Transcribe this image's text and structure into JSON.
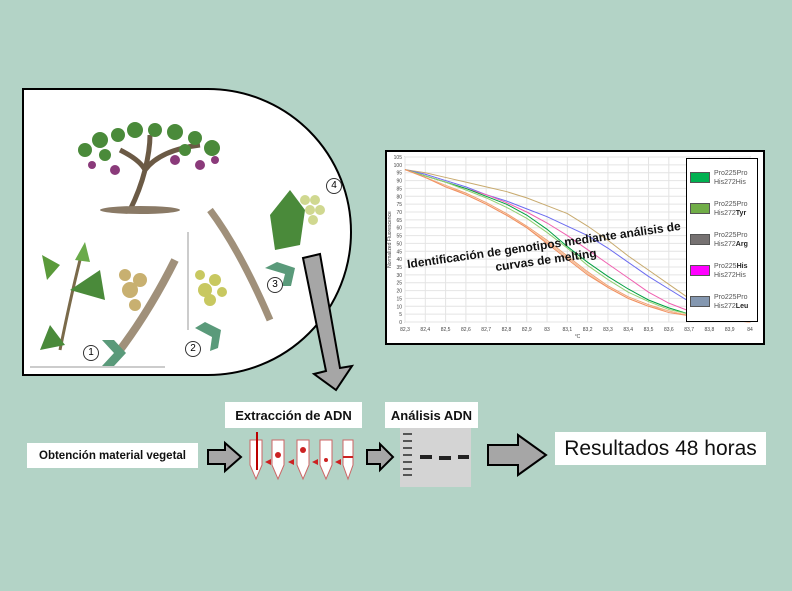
{
  "steps": {
    "obtain": "Obtención material vegetal",
    "extract": "Extracción de ADN",
    "analysis": "Análisis ADN",
    "results": "Resultados 48 horas"
  },
  "plant_stages": [
    "1",
    "2",
    "3",
    "4"
  ],
  "chart_overlay": "Identificación de genotipos mediante análisis de curvas de melting",
  "chart_data": {
    "type": "line",
    "xlabel": "°C",
    "ylabel": "Normalized Fluorescence",
    "xlim": [
      82.3,
      84
    ],
    "ylim": [
      0,
      105
    ],
    "x": [
      82.3,
      82.4,
      82.5,
      82.6,
      82.7,
      82.8,
      82.9,
      83,
      83.1,
      83.2,
      83.3,
      83.4,
      83.5,
      83.6,
      83.7,
      83.8,
      83.9,
      84
    ],
    "x_ticks": [
      "82,3",
      "82,4",
      "82,5",
      "82,6",
      "82,7",
      "82,8",
      "82,9",
      "83",
      "83,1",
      "83,2",
      "83,3",
      "83,4",
      "83,5",
      "83,6",
      "83,7",
      "83,8",
      "83,9",
      "84"
    ],
    "y_ticks": [
      0,
      5,
      10,
      15,
      20,
      25,
      30,
      35,
      40,
      45,
      50,
      55,
      60,
      65,
      70,
      75,
      80,
      85,
      90,
      95,
      100,
      105
    ],
    "grid": true,
    "legend": {
      "placement": "top-right",
      "entries": [
        {
          "l1": "Pro225Pro",
          "l2a": "His272",
          "l2b": "His",
          "bold": false,
          "color": "#00b050"
        },
        {
          "l1": "Pro225Pro",
          "l2a": "His272",
          "l2b": "Tyr",
          "bold": true,
          "color": "#70ad47"
        },
        {
          "l1": "Pro225Pro",
          "l2a": "His272",
          "l2b": "Arg",
          "bold": true,
          "color": "#767171"
        },
        {
          "l1a": "Pro225",
          "l1b": "His",
          "l2a": "His272",
          "l2b": "His",
          "bold1": true,
          "color": "#ff00ff"
        },
        {
          "l1": "Pro225Pro",
          "l2a": "His272",
          "l2b": "Leu",
          "bold": true,
          "color": "#8497b0"
        }
      ]
    },
    "series": [
      {
        "color": "#c8aa6e",
        "values": [
          97,
          95,
          92,
          89,
          86,
          83,
          79,
          74,
          69,
          61,
          52,
          42,
          33,
          24,
          15,
          8,
          3,
          0
        ]
      },
      {
        "color": "#6b6bf0",
        "values": [
          97,
          94,
          90,
          86,
          81,
          77,
          72,
          67,
          61,
          55,
          47,
          38,
          29,
          21,
          13,
          7,
          3,
          0
        ]
      },
      {
        "color": "#f060b0",
        "values": [
          97,
          93,
          89,
          85,
          81,
          76,
          70,
          63,
          55,
          46,
          37,
          28,
          19,
          12,
          7,
          4,
          2,
          0
        ]
      },
      {
        "color": "#00a040",
        "values": [
          97,
          93,
          89,
          85,
          80,
          75,
          68,
          59,
          48,
          38,
          29,
          21,
          14,
          9,
          5,
          3,
          2,
          0
        ]
      },
      {
        "color": "#90d070",
        "values": [
          97,
          93,
          89,
          84,
          79,
          73,
          66,
          57,
          47,
          36,
          27,
          19,
          13,
          8,
          5,
          3,
          2,
          0
        ]
      },
      {
        "color": "#f0a070",
        "values": [
          97,
          92,
          87,
          82,
          76,
          69,
          61,
          52,
          42,
          32,
          23,
          16,
          11,
          7,
          4,
          3,
          2,
          0
        ]
      },
      {
        "color": "#f4b890",
        "values": [
          97,
          92,
          87,
          81,
          75,
          68,
          60,
          51,
          41,
          31,
          22,
          15,
          10,
          7,
          4,
          2,
          1,
          0
        ]
      },
      {
        "color": "#f09060",
        "values": [
          97,
          92,
          86,
          81,
          75,
          68,
          60,
          50,
          40,
          30,
          22,
          15,
          10,
          6,
          4,
          2,
          1,
          0
        ]
      }
    ]
  }
}
